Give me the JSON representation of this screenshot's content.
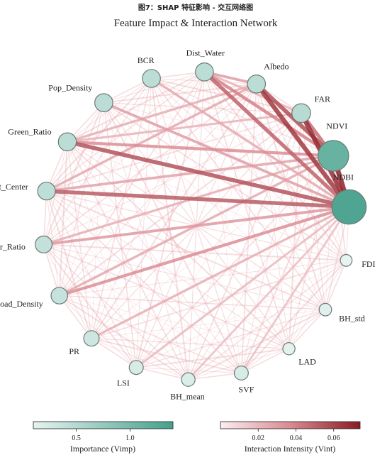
{
  "caption": "图7：SHAP 特征影响 - 交互网络图",
  "title": "Feature Impact & Interaction Network",
  "nodes": [
    {
      "name": "NDBI",
      "importance": 1.32
    },
    {
      "name": "NDVI",
      "importance": 1.12
    },
    {
      "name": "FAR",
      "importance": 0.48
    },
    {
      "name": "Albedo",
      "importance": 0.44
    },
    {
      "name": "Dist_Water",
      "importance": 0.44
    },
    {
      "name": "BCR",
      "importance": 0.44
    },
    {
      "name": "Pop_Density",
      "importance": 0.44
    },
    {
      "name": "Green_Ratio",
      "importance": 0.44
    },
    {
      "name": "Dist_Center",
      "importance": 0.42
    },
    {
      "name": "Water_Ratio",
      "importance": 0.38
    },
    {
      "name": "Road_Density",
      "importance": 0.36
    },
    {
      "name": "PR",
      "importance": 0.3
    },
    {
      "name": "LSI",
      "importance": 0.22
    },
    {
      "name": "BH_mean",
      "importance": 0.2
    },
    {
      "name": "SVF",
      "importance": 0.22
    },
    {
      "name": "LAD",
      "importance": 0.12
    },
    {
      "name": "BH_std",
      "importance": 0.14
    },
    {
      "name": "FDI",
      "importance": 0.1
    }
  ],
  "strong_edges": [
    [
      "NDBI",
      "NDVI",
      0.072
    ],
    [
      "NDBI",
      "FAR",
      0.068
    ],
    [
      "NDBI",
      "Albedo",
      0.064
    ],
    [
      "NDVI",
      "Albedo",
      0.056
    ],
    [
      "NDBI",
      "Dist_Water",
      0.05
    ],
    [
      "NDBI",
      "Green_Ratio",
      0.055
    ],
    [
      "NDBI",
      "Dist_Center",
      0.052
    ],
    [
      "NDVI",
      "FAR",
      0.046
    ],
    [
      "NDVI",
      "Dist_Water",
      0.04
    ],
    [
      "NDVI",
      "Green_Ratio",
      0.036
    ],
    [
      "NDVI",
      "Dist_Center",
      0.028
    ],
    [
      "NDBI",
      "Water_Ratio",
      0.032
    ],
    [
      "NDBI",
      "Road_Density",
      0.036
    ],
    [
      "NDBI",
      "Pop_Density",
      0.03
    ],
    [
      "NDBI",
      "BCR",
      0.026
    ],
    [
      "NDBI",
      "PR",
      0.024
    ],
    [
      "Albedo",
      "Dist_Water",
      0.03
    ],
    [
      "Albedo",
      "Dist_Center",
      0.026
    ],
    [
      "NDVI",
      "Water_Ratio",
      0.024
    ],
    [
      "NDVI",
      "Road_Density",
      0.026
    ],
    [
      "Albedo",
      "Green_Ratio",
      0.024
    ],
    [
      "FAR",
      "Dist_Water",
      0.022
    ],
    [
      "FAR",
      "Green_Ratio",
      0.022
    ],
    [
      "NDBI",
      "LSI",
      0.02
    ],
    [
      "NDBI",
      "SVF",
      0.018
    ],
    [
      "NDBI",
      "BH_mean",
      0.018
    ]
  ],
  "colorbars": {
    "importance": {
      "label": "Importance (Vimp)",
      "ticks": [
        "0.5",
        "1.0"
      ],
      "min": 0.1,
      "max": 1.4,
      "tick_values": [
        0.5,
        1.0
      ],
      "color_low": "#e6f3f0",
      "color_high": "#45a08c"
    },
    "interaction": {
      "label": "Interaction Intensity (Vint)",
      "ticks": [
        "0.02",
        "0.04",
        "0.06"
      ],
      "min": 0.0,
      "max": 0.074,
      "tick_values": [
        0.02,
        0.04,
        0.06
      ],
      "color_low": "#fbeef0",
      "color_high": "#8b1a22"
    }
  }
}
